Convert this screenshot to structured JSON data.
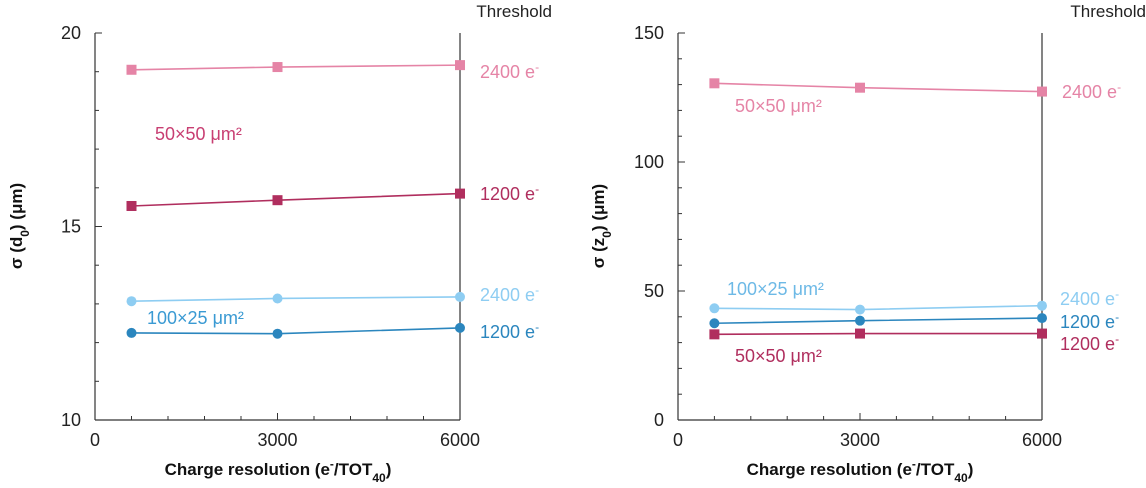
{
  "chart_data": [
    {
      "type": "line",
      "ylabel": "σ (d",
      "ylabel_sub": "0",
      "ylabel_tail": ") (μm)",
      "xlabel": "Charge resolution (e",
      "xlabel_sup": "-",
      "xlabel_mid": "/TOT",
      "xlabel_sub": "40",
      "xlabel_tail": ")",
      "threshold_header": "Threshold",
      "xlim": [
        0,
        6000
      ],
      "ylim": [
        10,
        20
      ],
      "xticks": [
        0,
        3000,
        6000
      ],
      "xtick_labels": [
        "0",
        "3000",
        "6000"
      ],
      "yticks": [
        10,
        15,
        20
      ],
      "ytick_labels": [
        "10",
        "15",
        "20"
      ],
      "series": [
        {
          "name": "2400 e-",
          "text": "2400 e",
          "sup": "-",
          "color": "#e584a6",
          "marker": "square",
          "x": [
            600,
            3000,
            6000
          ],
          "y": [
            19.05,
            19.12,
            19.17
          ]
        },
        {
          "name": "1200 e-",
          "text": "1200 e",
          "sup": "-",
          "color": "#b02e5e",
          "marker": "square",
          "x": [
            600,
            3000,
            6000
          ],
          "y": [
            15.53,
            15.68,
            15.85
          ]
        },
        {
          "name": "2400 e-",
          "text": "2400 e",
          "sup": "-",
          "color": "#8ecdf2",
          "marker": "circle",
          "x": [
            600,
            3000,
            6000
          ],
          "y": [
            13.07,
            13.14,
            13.18
          ]
        },
        {
          "name": "1200 e-",
          "text": "1200 e",
          "sup": "-",
          "color": "#2b86be",
          "marker": "circle",
          "x": [
            600,
            3000,
            6000
          ],
          "y": [
            12.25,
            12.23,
            12.38
          ]
        }
      ],
      "annotations": [
        {
          "text": "50×50 μm²",
          "color": "#c83e72"
        },
        {
          "text": "100×25 μm²",
          "color": "#3a9ad3"
        }
      ]
    },
    {
      "type": "line",
      "ylabel": "σ (z",
      "ylabel_sub": "0",
      "ylabel_tail": ") (μm)",
      "xlabel": "Charge resolution (e",
      "xlabel_sup": "-",
      "xlabel_mid": "/TOT",
      "xlabel_sub": "40",
      "xlabel_tail": ")",
      "threshold_header": "Threshold",
      "xlim": [
        0,
        6000
      ],
      "ylim": [
        0,
        150
      ],
      "xticks": [
        0,
        3000,
        6000
      ],
      "xtick_labels": [
        "0",
        "3000",
        "6000"
      ],
      "yticks": [
        0,
        50,
        100,
        150
      ],
      "ytick_labels": [
        "0",
        "50",
        "100",
        "150"
      ],
      "series": [
        {
          "name": "2400 e-",
          "text": "2400 e",
          "sup": "-",
          "color": "#e584a6",
          "marker": "square",
          "x": [
            600,
            3000,
            6000
          ],
          "y": [
            130.5,
            128.8,
            127.3
          ]
        },
        {
          "name": "2400 e-",
          "text": "2400 e",
          "sup": "-",
          "color": "#8ecdf2",
          "marker": "circle",
          "x": [
            600,
            3000,
            6000
          ],
          "y": [
            43.3,
            42.8,
            44.3
          ]
        },
        {
          "name": "1200 e-",
          "text": "1200 e",
          "sup": "-",
          "color": "#2b86be",
          "marker": "circle",
          "x": [
            600,
            3000,
            6000
          ],
          "y": [
            37.5,
            38.5,
            39.5
          ]
        },
        {
          "name": "1200 e-",
          "text": "1200 e",
          "sup": "-",
          "color": "#b02e5e",
          "marker": "square",
          "x": [
            600,
            3000,
            6000
          ],
          "y": [
            33.2,
            33.5,
            33.5
          ]
        }
      ],
      "annotations": [
        {
          "text": "50×50 μm²",
          "color": "#e584a6"
        },
        {
          "text": "100×25 μm²",
          "color": "#6db9e6"
        },
        {
          "text": "50×50 μm²",
          "color": "#b02e5e"
        }
      ]
    }
  ]
}
